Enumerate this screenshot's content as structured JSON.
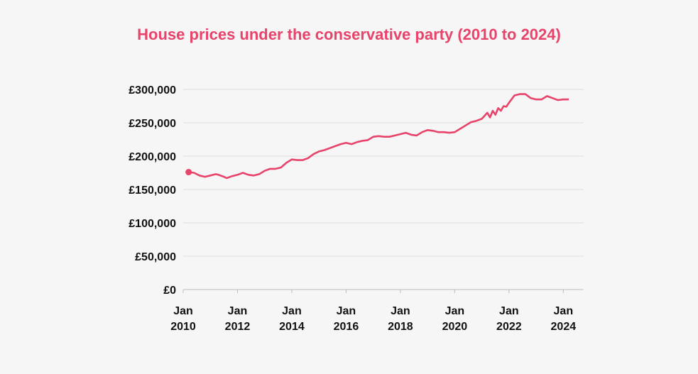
{
  "chart_data": {
    "type": "line",
    "title": "House prices under the conservative party (2010 to 2024)",
    "xlabel": "",
    "ylabel": "",
    "xlim": [
      2010.0,
      2024.75
    ],
    "ylim": [
      0,
      300000
    ],
    "grid": true,
    "line_color": "#e8436a",
    "y_ticks": [
      {
        "value": 0,
        "label": "£0"
      },
      {
        "value": 50000,
        "label": "£50,000"
      },
      {
        "value": 100000,
        "label": "£100,000"
      },
      {
        "value": 150000,
        "label": "£150,000"
      },
      {
        "value": 200000,
        "label": "£200,000"
      },
      {
        "value": 250000,
        "label": "£250,000"
      },
      {
        "value": 300000,
        "label": "£300,000"
      }
    ],
    "x_ticks": [
      {
        "value": 2010,
        "label": [
          "Jan",
          "2010"
        ]
      },
      {
        "value": 2012,
        "label": [
          "Jan",
          "2012"
        ]
      },
      {
        "value": 2014,
        "label": [
          "Jan",
          "2014"
        ]
      },
      {
        "value": 2016,
        "label": [
          "Jan",
          "2016"
        ]
      },
      {
        "value": 2018,
        "label": [
          "Jan",
          "2018"
        ]
      },
      {
        "value": 2020,
        "label": [
          "Jan",
          "2020"
        ]
      },
      {
        "value": 2022,
        "label": [
          "Jan",
          "2022"
        ]
      },
      {
        "value": 2024,
        "label": [
          "Jan",
          "2024"
        ]
      }
    ],
    "series": [
      {
        "x": [
          2010.2,
          2010.4,
          2010.6,
          2010.8,
          2011.0,
          2011.2,
          2011.3,
          2011.5,
          2011.6,
          2011.8,
          2012.0,
          2012.2,
          2012.4,
          2012.6,
          2012.8,
          2013.0,
          2013.2,
          2013.4,
          2013.6,
          2013.8,
          2014.0,
          2014.2,
          2014.4,
          2014.6,
          2014.8,
          2015.0,
          2015.2,
          2015.4,
          2015.6,
          2015.8,
          2016.0,
          2016.2,
          2016.4,
          2016.6,
          2016.8,
          2017.0,
          2017.2,
          2017.4,
          2017.6,
          2017.8,
          2018.0,
          2018.2,
          2018.4,
          2018.6,
          2018.8,
          2019.0,
          2019.2,
          2019.4,
          2019.6,
          2019.8,
          2020.0,
          2020.2,
          2020.4,
          2020.6,
          2020.8,
          2021.0,
          2021.2,
          2021.3,
          2021.4,
          2021.5,
          2021.6,
          2021.7,
          2021.8,
          2021.9,
          2022.0,
          2022.2,
          2022.4,
          2022.6,
          2022.8,
          2023.0,
          2023.2,
          2023.4,
          2023.6,
          2023.8,
          2024.0,
          2024.2
        ],
        "y": [
          176000,
          175000,
          171000,
          169000,
          171000,
          173000,
          172000,
          169000,
          167000,
          170000,
          172000,
          175000,
          172000,
          171000,
          173000,
          178000,
          181000,
          181000,
          183000,
          190000,
          195000,
          194000,
          194000,
          197000,
          203000,
          207000,
          209000,
          212000,
          215000,
          218000,
          220000,
          218000,
          221000,
          223000,
          224000,
          229000,
          230000,
          229000,
          229000,
          231000,
          233000,
          235000,
          232000,
          231000,
          236000,
          239000,
          238000,
          236000,
          236000,
          235000,
          236000,
          241000,
          246000,
          251000,
          253000,
          256000,
          265000,
          258000,
          268000,
          262000,
          272000,
          268000,
          275000,
          274000,
          280000,
          291000,
          293000,
          293000,
          287000,
          285000,
          285000,
          290000,
          287000,
          284000,
          285000,
          285000
        ]
      }
    ]
  }
}
